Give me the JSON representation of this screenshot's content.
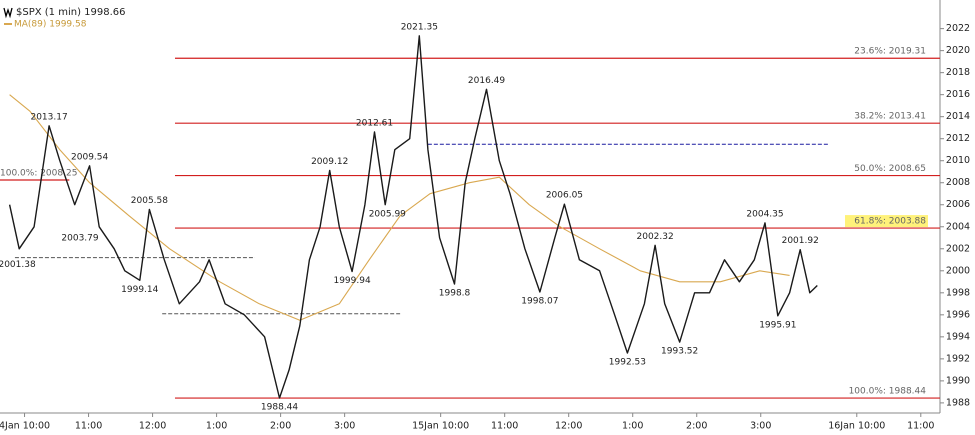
{
  "chart_data": {
    "type": "line",
    "ylim": [
      1986.9,
      2024.6
    ],
    "yticks": [
      1988,
      1990,
      1992,
      1994,
      1996,
      1998,
      2000,
      2002,
      2004,
      2006,
      2008,
      2010,
      2012,
      2014,
      2016,
      2018,
      2020,
      2022
    ],
    "xlim": [
      7,
      888
    ],
    "xticks": [
      {
        "value": 30,
        "label": "4Jan 10:00"
      },
      {
        "value": 90,
        "label": "11:00"
      },
      {
        "value": 150,
        "label": "12:00"
      },
      {
        "value": 210,
        "label": "1:00"
      },
      {
        "value": 270,
        "label": "2:00"
      },
      {
        "value": 330,
        "label": "3:00"
      },
      {
        "value": 420,
        "label": "15Jan 10:00"
      },
      {
        "value": 480,
        "label": "11:00"
      },
      {
        "value": 540,
        "label": "12:00"
      },
      {
        "value": 600,
        "label": "1:00"
      },
      {
        "value": 660,
        "label": "2:00"
      },
      {
        "value": 720,
        "label": "3:00"
      },
      {
        "value": 810,
        "label": "16Jan 10:00"
      },
      {
        "value": 870,
        "label": "11:00"
      }
    ],
    "series": [
      {
        "name": "$SPX (1 min) 1998.66",
        "color": "#1a1a1a",
        "x": [
          16,
          25,
          39,
          53,
          63,
          77,
          91,
          100,
          114,
          124,
          138,
          147,
          161,
          175,
          194,
          203,
          218,
          236,
          255,
          269,
          278,
          288,
          297,
          307,
          316,
          325,
          337,
          349,
          358,
          368,
          377,
          391,
          400,
          408,
          419,
          433,
          443,
          452,
          463,
          475,
          485,
          499,
          513,
          527,
          536,
          550,
          569,
          583,
          595,
          611,
          621,
          630,
          644,
          658,
          672,
          686,
          700,
          714,
          724,
          736,
          747,
          757,
          766,
          773
        ],
        "values": [
          2006,
          2002,
          2004,
          2013.17,
          2010,
          2006,
          2009.54,
          2004,
          2002,
          2000,
          1999.14,
          2005.58,
          2001,
          1997,
          1999,
          2001,
          1997,
          1996,
          1994,
          1988.44,
          1991,
          1995,
          2001,
          2004,
          2009.12,
          2004,
          1999.94,
          2006,
          2012.61,
          2006,
          2011,
          2012,
          2021.35,
          2011,
          2003,
          1998.8,
          2008,
          2012,
          2016.49,
          2010,
          2007,
          2002,
          1998.07,
          2003,
          2006.05,
          2001,
          2000,
          1996,
          1992.53,
          1997,
          2002.32,
          1997,
          1993.52,
          1998,
          1998,
          2001,
          1999,
          2001,
          2004.35,
          1995.91,
          1998,
          2001.92,
          1998,
          1998.66
        ]
      },
      {
        "name": "MA(89) 1999.58",
        "color": "#d9a850",
        "x": [
          16,
          35,
          63,
          91,
          128,
          166,
          213,
          250,
          288,
          325,
          353,
          382,
          410,
          447,
          475,
          503,
          532,
          569,
          607,
          644,
          682,
          719,
          747
        ],
        "values": [
          2016,
          2014.5,
          2011,
          2008,
          2005,
          2002,
          1999,
          1997,
          1995.5,
          1997,
          2001,
          2005,
          2007,
          2008,
          2008.5,
          2006,
          2004,
          2002,
          2000,
          1999,
          1999,
          2000,
          1999.58
        ]
      }
    ],
    "annotations": [
      {
        "x": 53,
        "value": 2013.17,
        "side": "above"
      },
      {
        "x": 23,
        "value": 2001.38,
        "side": "below"
      },
      {
        "x": 91,
        "value": 2009.54,
        "side": "above"
      },
      {
        "x": 82,
        "value": 2003.79,
        "side": "below"
      },
      {
        "x": 147,
        "value": 2005.58,
        "side": "above"
      },
      {
        "x": 138,
        "value": 1999.14,
        "side": "below"
      },
      {
        "x": 269,
        "value": 1988.44,
        "side": "below"
      },
      {
        "x": 316,
        "value": 2009.12,
        "side": "above"
      },
      {
        "x": 337,
        "value": 1999.94,
        "side": "below"
      },
      {
        "x": 358,
        "value": 2012.61,
        "side": "above"
      },
      {
        "x": 370,
        "value": 2005.99,
        "side": "below"
      },
      {
        "x": 400,
        "value": 2021.35,
        "side": "above"
      },
      {
        "x": 433,
        "value": 1998.8,
        "side": "below"
      },
      {
        "x": 463,
        "value": 2016.49,
        "side": "above"
      },
      {
        "x": 513,
        "value": 1998.07,
        "side": "below"
      },
      {
        "x": 536,
        "value": 2006.05,
        "side": "above"
      },
      {
        "x": 595,
        "value": 1992.53,
        "side": "below"
      },
      {
        "x": 621,
        "value": 2002.32,
        "side": "above"
      },
      {
        "x": 644,
        "value": 1993.52,
        "side": "below"
      },
      {
        "x": 724,
        "value": 2004.35,
        "side": "above"
      },
      {
        "x": 736,
        "value": 1995.91,
        "side": "below"
      },
      {
        "x": 757,
        "value": 2001.92,
        "side": "above"
      }
    ],
    "fib_levels": [
      {
        "label": "23.6%: 2019.31",
        "value": 2019.31,
        "x": [
          171,
          888
        ]
      },
      {
        "label": "38.2%: 2013.41",
        "value": 2013.41,
        "x": [
          171,
          888
        ]
      },
      {
        "label": "50.0%: 2008.65",
        "value": 2008.65,
        "x": [
          171,
          888
        ]
      },
      {
        "label": "61.8%: 2003.88",
        "value": 2003.88,
        "x": [
          171,
          888
        ],
        "highlight": true
      },
      {
        "label": "100.0%: 1988.44",
        "value": 1988.44,
        "x": [
          171,
          888
        ]
      },
      {
        "label": "100.0%: 2008.25",
        "value": 2008.25,
        "x": [
          7,
          72
        ],
        "label_side": "left"
      }
    ],
    "fib_color": "#d21f1f",
    "reference_lines": [
      {
        "value": 2001.2,
        "x": [
          21,
          246
        ],
        "color": "#555555"
      },
      {
        "value": 1996.1,
        "x": [
          159,
          382
        ],
        "color": "#555555"
      },
      {
        "value": 2011.5,
        "x": [
          408,
          783
        ],
        "color": "#1a1aa0"
      }
    ]
  }
}
